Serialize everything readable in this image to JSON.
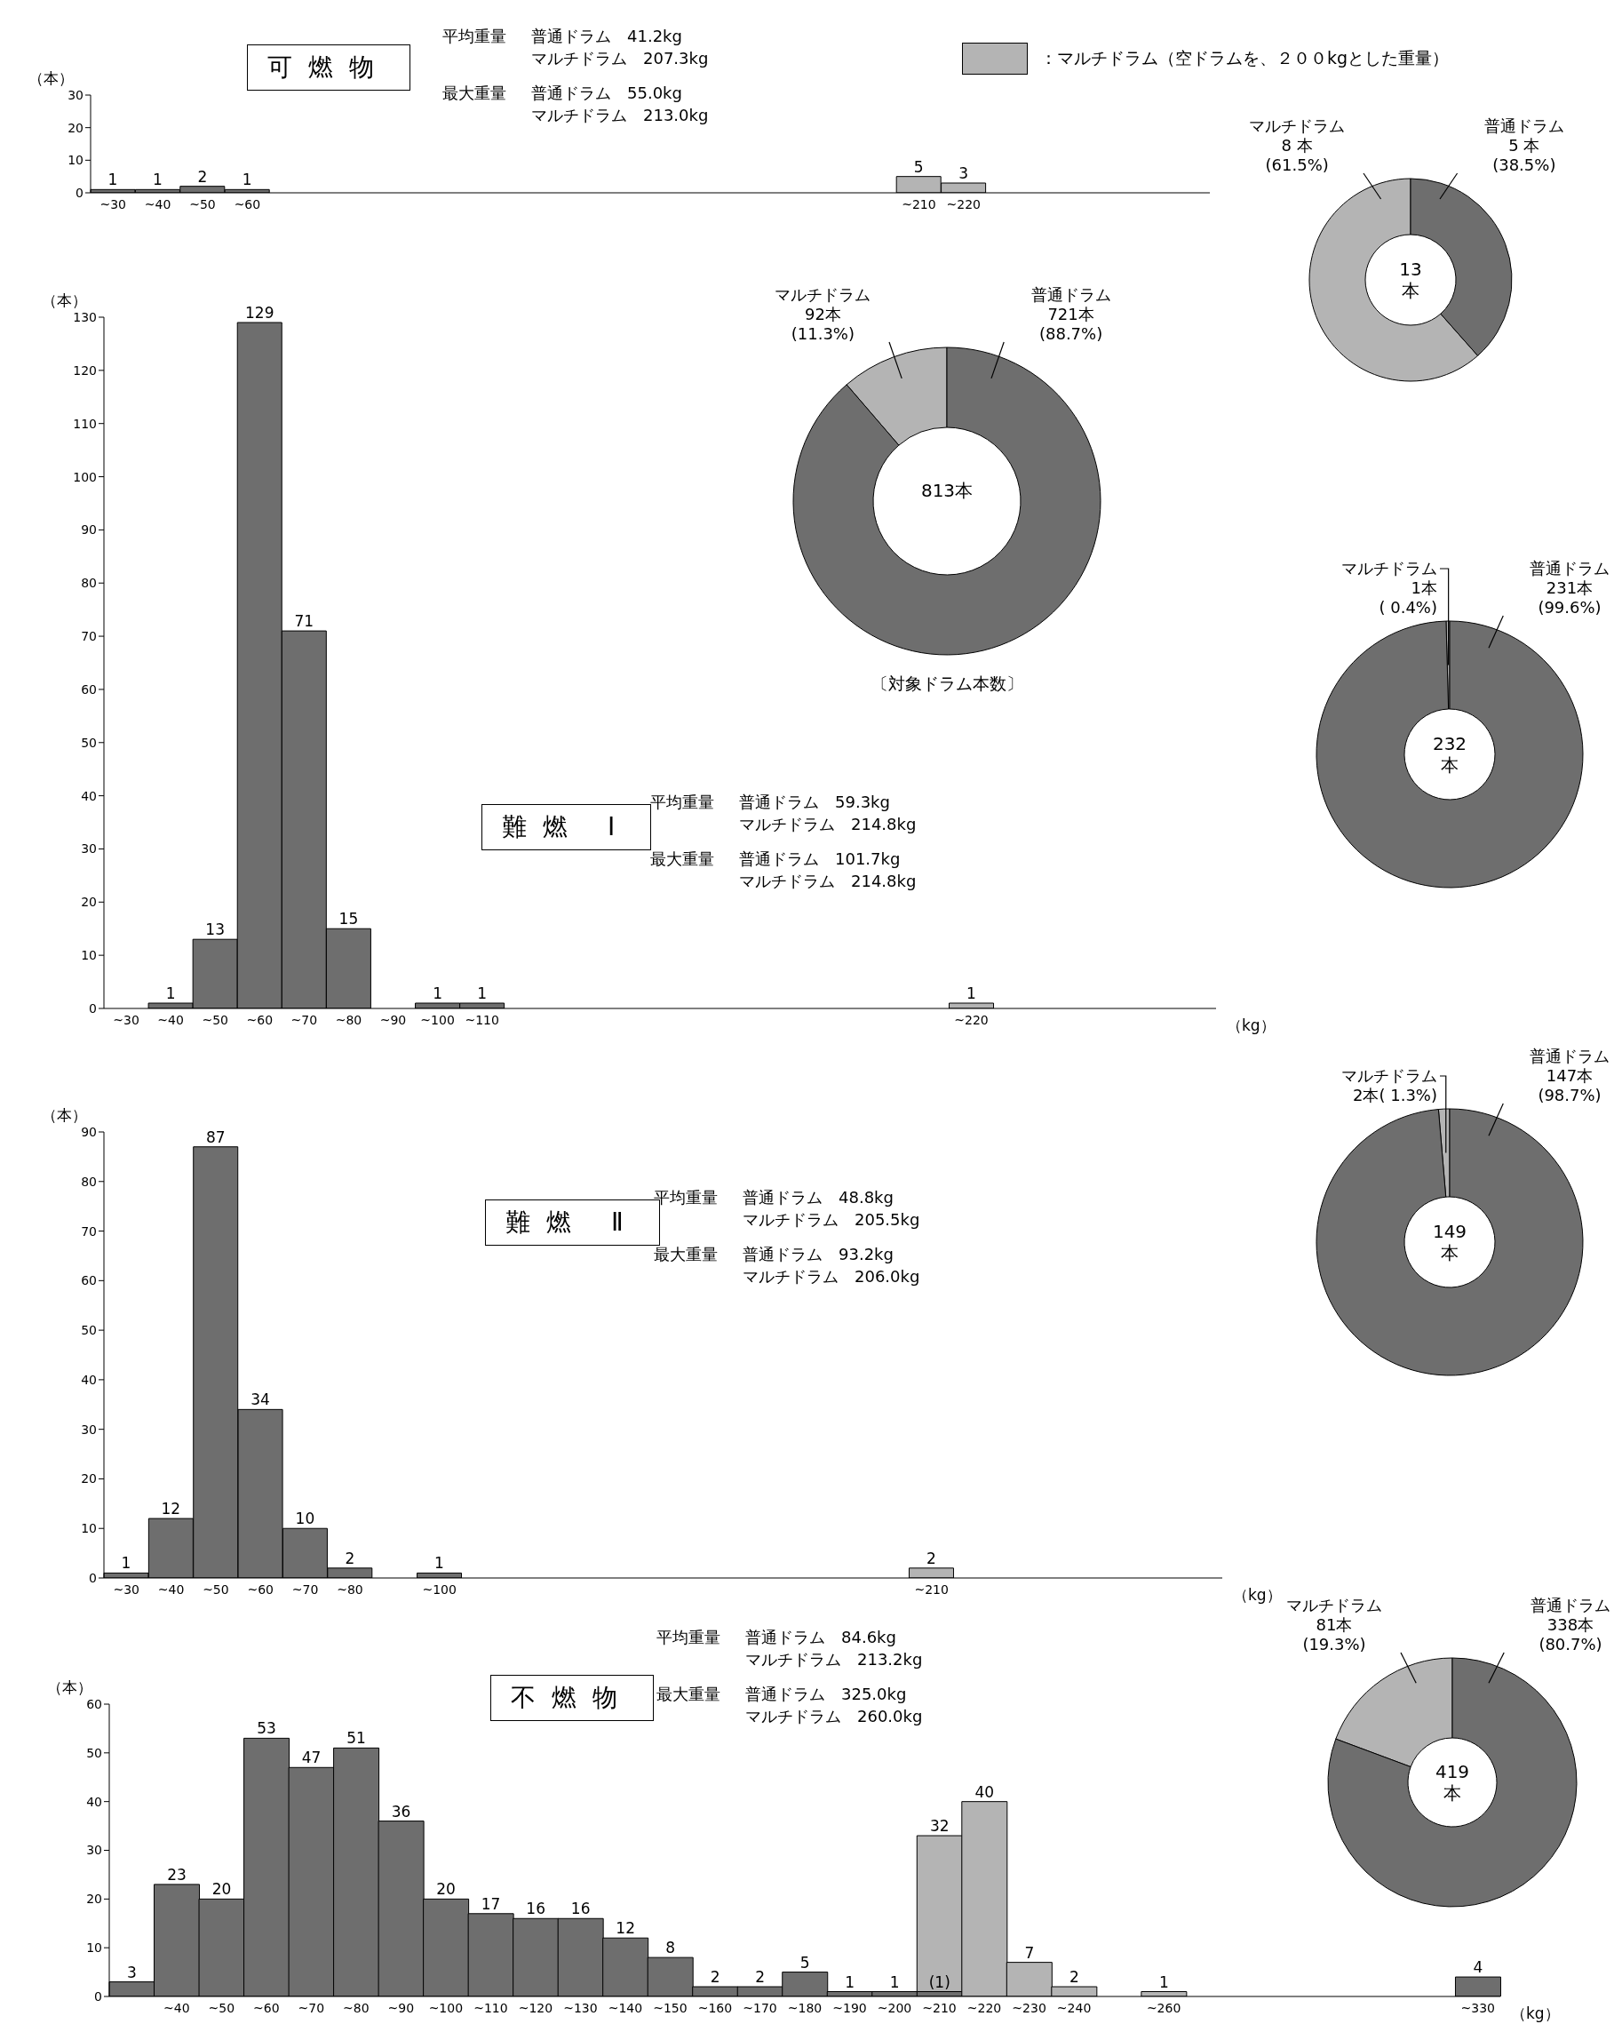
{
  "chart_data": [
    {
      "type": "bar",
      "title": "可燃物",
      "ylabel": "（本）",
      "stacked": true,
      "data_labels": true,
      "legend": "top right",
      "ylim": [
        0,
        30
      ],
      "yticks": [
        0,
        10,
        20,
        30
      ],
      "categories": [
        "~30",
        "~40",
        "~50",
        "~60",
        null,
        null,
        null,
        null,
        null,
        null,
        null,
        null,
        null,
        null,
        null,
        null,
        null,
        null,
        "~210",
        "~220",
        null,
        null,
        null,
        null,
        null
      ],
      "series": [
        {
          "color": "#6e6e6e",
          "values": [
            1,
            1,
            2,
            1,
            null,
            null,
            null,
            null,
            null,
            null,
            null,
            null,
            null,
            null,
            null,
            null,
            null,
            null,
            null,
            null,
            null,
            null,
            null,
            null,
            null
          ]
        },
        {
          "name": "：マルチドラム（空ドラムを、２００kgとした重量）",
          "color": "#b4b4b4",
          "values": [
            null,
            null,
            null,
            null,
            null,
            null,
            null,
            null,
            null,
            null,
            null,
            null,
            null,
            null,
            null,
            null,
            null,
            null,
            5,
            3,
            null,
            null,
            null,
            null,
            null
          ]
        }
      ],
      "annotations": [
        "平均重量",
        "普通ドラム　41.2kg",
        "マルチドラム　207.3kg",
        "最大重量",
        "普通ドラム　55.0kg",
        "マルチドラム　213.0kg"
      ]
    },
    {
      "type": "donut",
      "categories": [
        "マルチドラム",
        "普通ドラム"
      ],
      "values": [
        8,
        5
      ],
      "colors": [
        "#b4b4b4",
        "#6e6e6e"
      ],
      "value_labels": [
        "8 本\n(61.5%)",
        "5 本\n(38.5%)"
      ],
      "annotations": [
        "13\n本"
      ]
    },
    {
      "type": "bar",
      "title": "難燃 Ⅰ",
      "ylabel": "（本）",
      "xlabel": "（kg）",
      "stacked": true,
      "data_labels": true,
      "ylim": [
        0,
        130
      ],
      "yticks": [
        0,
        10,
        20,
        30,
        40,
        50,
        60,
        70,
        80,
        90,
        100,
        110,
        120,
        130
      ],
      "categories": [
        "~30",
        "~40",
        "~50",
        "~60",
        "~70",
        "~80",
        "~90",
        "~100",
        "~110",
        null,
        null,
        null,
        null,
        null,
        null,
        null,
        null,
        null,
        null,
        "~220",
        null,
        null,
        null,
        null,
        null
      ],
      "series": [
        {
          "color": "#6e6e6e",
          "values": [
            null,
            1,
            13,
            129,
            71,
            15,
            null,
            1,
            1,
            null,
            null,
            null,
            null,
            null,
            null,
            null,
            null,
            null,
            null,
            null,
            null,
            null,
            null,
            null,
            null
          ]
        },
        {
          "color": "#b4b4b4",
          "values": [
            null,
            null,
            null,
            null,
            null,
            null,
            null,
            null,
            null,
            null,
            null,
            null,
            null,
            null,
            null,
            null,
            null,
            null,
            null,
            1,
            null,
            null,
            null,
            null,
            null
          ]
        }
      ],
      "annotations": [
        "平均重量",
        "普通ドラム　59.3kg",
        "マルチドラム　214.8kg",
        "最大重量",
        "普通ドラム　101.7kg",
        "マルチドラム　214.8kg"
      ]
    },
    {
      "type": "donut",
      "categories": [
        "マルチドラム",
        "普通ドラム"
      ],
      "values": [
        92,
        721
      ],
      "colors": [
        "#b4b4b4",
        "#6e6e6e"
      ],
      "value_labels": [
        "92本\n(11.3%)",
        "721本\n(88.7%)"
      ],
      "annotations": [
        "813本",
        "〔対象ドラム本数〕"
      ]
    },
    {
      "type": "donut",
      "categories": [
        "マルチドラム",
        "普通ドラム"
      ],
      "values": [
        1,
        231
      ],
      "colors": [
        "#b4b4b4",
        "#6e6e6e"
      ],
      "value_labels": [
        "1本\n( 0.4%)",
        "231本\n(99.6%)"
      ],
      "annotations": [
        "232\n本"
      ]
    },
    {
      "type": "bar",
      "title": "難燃 Ⅱ",
      "ylabel": "（本）",
      "xlabel": "（kg）",
      "stacked": true,
      "data_labels": true,
      "ylim": [
        0,
        90
      ],
      "yticks": [
        0,
        10,
        20,
        30,
        40,
        50,
        60,
        70,
        80,
        90
      ],
      "categories": [
        "~30",
        "~40",
        "~50",
        "~60",
        "~70",
        "~80",
        null,
        "~100",
        null,
        null,
        null,
        null,
        null,
        null,
        null,
        null,
        null,
        null,
        "~210",
        null,
        null,
        null,
        null,
        null,
        null
      ],
      "series": [
        {
          "color": "#6e6e6e",
          "values": [
            1,
            12,
            87,
            34,
            10,
            2,
            null,
            1,
            null,
            null,
            null,
            null,
            null,
            null,
            null,
            null,
            null,
            null,
            null,
            null,
            null,
            null,
            null,
            null,
            null
          ]
        },
        {
          "color": "#b4b4b4",
          "values": [
            null,
            null,
            null,
            null,
            null,
            null,
            null,
            null,
            null,
            null,
            null,
            null,
            null,
            null,
            null,
            null,
            null,
            null,
            2,
            null,
            null,
            null,
            null,
            null,
            null
          ]
        }
      ],
      "annotations": [
        "平均重量",
        "普通ドラム　48.8kg",
        "マルチドラム　205.5kg",
        "最大重量",
        "普通ドラム　93.2kg",
        "マルチドラム　206.0kg"
      ]
    },
    {
      "type": "donut",
      "categories": [
        "マルチドラム",
        "普通ドラム"
      ],
      "values": [
        2,
        147
      ],
      "colors": [
        "#b4b4b4",
        "#6e6e6e"
      ],
      "value_labels": [
        "2本( 1.3%)",
        "147本\n(98.7%)"
      ],
      "annotations": [
        "149\n本"
      ]
    },
    {
      "type": "bar",
      "title": "不燃物",
      "ylabel": "（本）",
      "xlabel": "（kg）",
      "stacked": true,
      "data_labels": true,
      "ylim": [
        0,
        60
      ],
      "yticks": [
        0,
        10,
        20,
        30,
        40,
        50,
        60
      ],
      "categories": [
        null,
        "~40",
        "~50",
        "~60",
        "~70",
        "~80",
        "~90",
        "~100",
        "~110",
        "~120",
        "~130",
        "~140",
        "~150",
        "~160",
        "~170",
        "~180",
        "~190",
        "~200",
        "~210",
        "~220",
        "~230",
        "~240",
        null,
        "~260",
        null,
        null,
        null,
        null,
        null,
        null,
        "~330"
      ],
      "series": [
        {
          "color": "#6e6e6e",
          "values": [
            3,
            23,
            20,
            53,
            47,
            51,
            36,
            20,
            17,
            16,
            16,
            12,
            8,
            2,
            2,
            5,
            1,
            1,
            1,
            null,
            null,
            null,
            null,
            null,
            null,
            null,
            null,
            null,
            null,
            null,
            4
          ],
          "value_labels": [
            "3",
            "23",
            "20",
            "53",
            "47",
            "51",
            "36",
            "20",
            "17",
            "16",
            "16",
            "12",
            "8",
            "2",
            "2",
            "5",
            "1",
            "1",
            "(1)",
            null,
            null,
            null,
            null,
            null,
            null,
            null,
            null,
            null,
            null,
            null,
            "4"
          ]
        },
        {
          "color": "#b4b4b4",
          "values": [
            null,
            null,
            null,
            null,
            null,
            null,
            null,
            null,
            null,
            null,
            null,
            null,
            null,
            null,
            null,
            null,
            null,
            null,
            32,
            40,
            7,
            2,
            null,
            1,
            null,
            null,
            null,
            null,
            null,
            null,
            null
          ]
        }
      ],
      "annotations": [
        "平均重量",
        "普通ドラム　84.6kg",
        "マルチドラム　213.2kg",
        "最大重量",
        "普通ドラム　325.0kg",
        "マルチドラム　260.0kg"
      ]
    },
    {
      "type": "donut",
      "categories": [
        "マルチドラム",
        "普通ドラム"
      ],
      "values": [
        81,
        338
      ],
      "colors": [
        "#b4b4b4",
        "#6e6e6e"
      ],
      "value_labels": [
        "81本\n(19.3%)",
        "338本\n(80.7%)"
      ],
      "annotations": [
        "419\n本"
      ]
    }
  ]
}
